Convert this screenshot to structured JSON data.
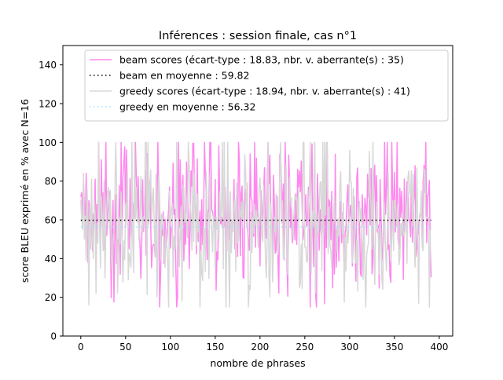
{
  "chart_data": {
    "type": "line",
    "title": "Inférences : session finale, cas n°1",
    "xlabel": "nombre de phrases",
    "ylabel": "score BLEU exprimé en % avec N=16",
    "xlim": [
      -20,
      415
    ],
    "ylim": [
      0,
      150
    ],
    "xticks": [
      0,
      50,
      100,
      150,
      200,
      250,
      300,
      350,
      400
    ],
    "yticks": [
      0,
      20,
      40,
      60,
      80,
      100,
      120,
      140
    ],
    "grid": false,
    "legend_position": "top-right",
    "n_points": 392,
    "series": [
      {
        "name": "beam scores (écart-type : 18.83, nbr. v. aberrante(s) : 35)",
        "style": "solid",
        "color": "#ff88ee",
        "mean": 59.82,
        "std": 18.83,
        "values_sample": [
          72,
          74,
          62,
          79,
          68,
          55,
          84,
          60,
          38,
          70,
          66,
          52,
          71,
          44,
          63,
          58,
          81,
          47,
          68,
          55,
          100,
          62,
          50,
          91,
          57,
          74,
          45,
          68,
          100,
          52
        ]
      },
      {
        "name": "beam en moyenne : 59.82",
        "style": "dotted",
        "color": "#000000",
        "value": 59.82
      },
      {
        "name": "greedy scores (écart-type : 18.94, nbr. v. aberrante(s) : 41)",
        "style": "solid",
        "color": "#d8d8d8",
        "mean": 56.32,
        "std": 18.94,
        "values_sample": [
          70,
          60,
          55,
          84,
          50,
          62,
          39,
          76,
          58,
          16,
          67,
          45,
          81,
          52,
          40,
          70,
          63,
          22,
          58,
          48,
          100,
          55,
          35,
          72,
          61,
          44,
          80,
          30,
          56,
          66
        ]
      },
      {
        "name": "greedy en moyenne : 56.32",
        "style": "dotted",
        "color": "#aaddff",
        "value": 56.32
      }
    ]
  }
}
